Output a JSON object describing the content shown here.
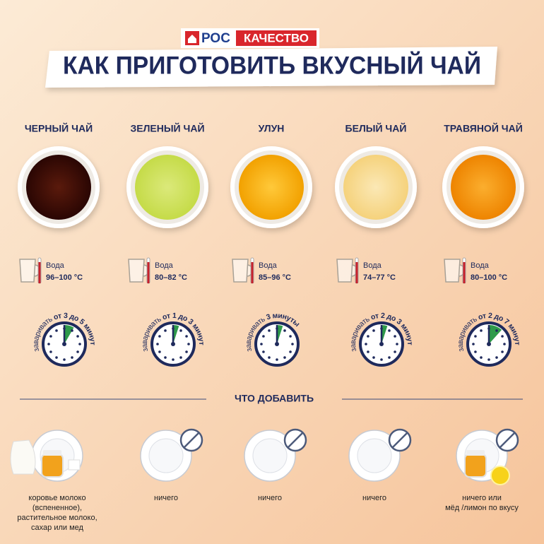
{
  "header": {
    "logo": {
      "left": "РОС",
      "right": "КАЧЕСТВО"
    },
    "title": "КАК ПРИГОТОВИТЬ ВКУСНЫЙ ЧАЙ"
  },
  "teas": [
    {
      "name": "ЧЕРНЫЙ ЧАЙ",
      "water_label": "Вода",
      "temperature": "96–100 °C",
      "brew_label": "заваривать",
      "brew_time": "от 3 до 5 минут"
    },
    {
      "name": "ЗЕЛЕНЫЙ ЧАЙ",
      "water_label": "Вода",
      "temperature": "80–82 °C",
      "brew_label": "заваривать",
      "brew_time": "от 1 до 3 минут"
    },
    {
      "name": "УЛУН",
      "water_label": "Вода",
      "temperature": "85–96 °C",
      "brew_label": "заваривать",
      "brew_time": "3 минуты"
    },
    {
      "name": "БЕЛЫЙ ЧАЙ",
      "water_label": "Вода",
      "temperature": "74–77 °C",
      "brew_label": "заваривать",
      "brew_time": "от 2 до 3 минут"
    },
    {
      "name": "ТРАВЯНОЙ ЧАЙ",
      "water_label": "Вода",
      "temperature": "80–100 °C",
      "brew_label": "заваривать",
      "brew_time": "от 2 до 7 минут"
    }
  ],
  "additions": {
    "title": "ЧТО ДОБАВИТЬ",
    "items": [
      [
        "коровье молоко",
        "(вспененное),",
        "растительное молоко,",
        "сахар или мед"
      ],
      [
        "ничего"
      ],
      [
        "ничего"
      ],
      [
        "ничего"
      ],
      [
        "ничего или",
        "мёд /лимон по вкусу"
      ]
    ]
  }
}
